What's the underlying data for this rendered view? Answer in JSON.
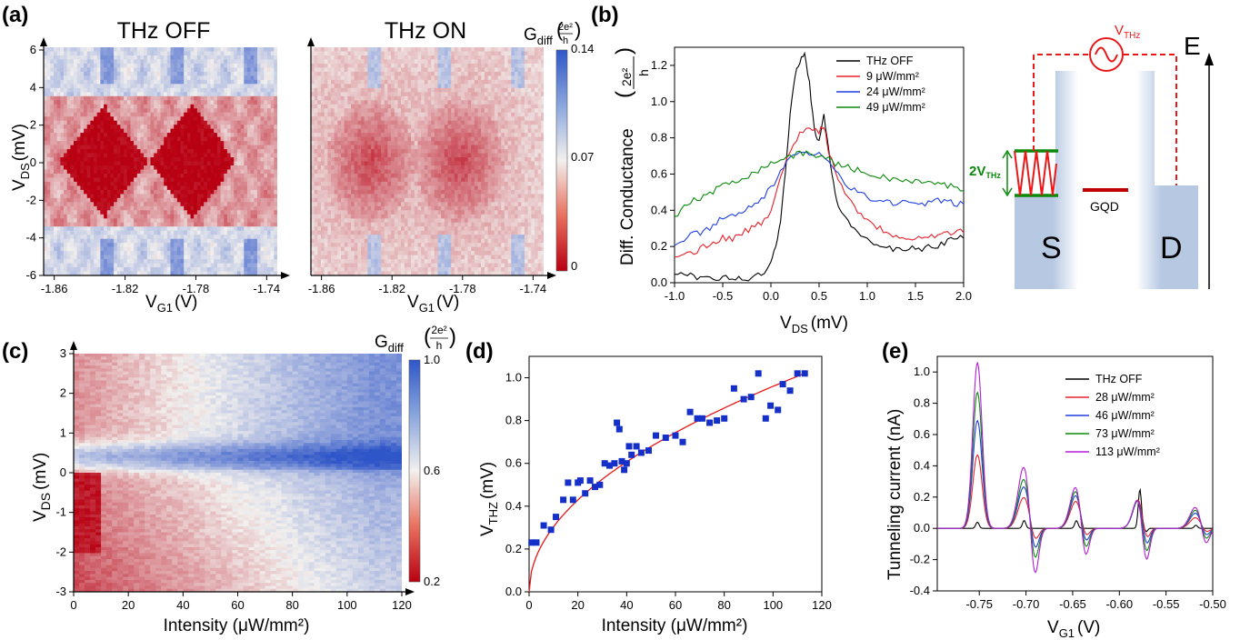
{
  "panel_labels": [
    "(a)",
    "(b)",
    "(c)",
    "(d)",
    "(e)"
  ],
  "colors": {
    "thz_off": "#000000",
    "red": "#e8202a",
    "blue": "#1f3fe0",
    "green": "#0a8a0a",
    "purple": "#b41ed8",
    "marker": "#1530c8",
    "fit": "#e81818",
    "map_low": "#b80012",
    "map_mid": "#f2f0ee",
    "map_high": "#2f56c8",
    "band": "#b7c8e3"
  },
  "chart_data": [
    {
      "id": "a",
      "type": "heatmap",
      "titles": [
        "THz OFF",
        "THz ON"
      ],
      "xlabel_main": "V",
      "xlabel_sub": "G1",
      "xlabel_unit": "(V)",
      "ylabel_main": "V",
      "ylabel_sub": "DS",
      "ylabel_unit": "(mV)",
      "xticks": [
        "-1.86",
        "-1.82",
        "-1.78",
        "-1.74"
      ],
      "xtick_values": [
        -1.86,
        -1.82,
        -1.78,
        -1.74
      ],
      "yticks": [
        "6",
        "4",
        "2",
        "0",
        "-2",
        "-4",
        "-6"
      ],
      "ytick_values": [
        6,
        4,
        2,
        0,
        -2,
        -4,
        -6
      ],
      "xlim": [
        -1.866,
        -1.734
      ],
      "ylim": [
        -6,
        6
      ],
      "colorbar": {
        "label_main": "G",
        "label_sub": "diff",
        "label_num": "2e²",
        "label_den": "h",
        "ticks": [
          "0.14",
          "0.07",
          "0"
        ],
        "range": [
          0,
          0.14
        ]
      },
      "diamond_centers_V": [
        -1.832,
        -1.782
      ],
      "diamond_height_mV": 3.0
    },
    {
      "id": "b",
      "type": "line",
      "xlabel_main": "V",
      "xlabel_sub": "DS",
      "xlabel_unit": "(mV)",
      "ylabel": "Diff. Conductance",
      "ylabel_num": "2e²",
      "ylabel_den": "h",
      "xticks": [
        "-1.0",
        "-0.5",
        "0.0",
        "0.5",
        "1.0",
        "1.5",
        "2.0"
      ],
      "xtick_values": [
        -1.0,
        -0.5,
        0.0,
        0.5,
        1.0,
        1.5,
        2.0
      ],
      "yticks": [
        "0.0",
        "0.2",
        "0.4",
        "0.6",
        "0.8",
        "1.0",
        "1.2"
      ],
      "ytick_values": [
        0,
        0.2,
        0.4,
        0.6,
        0.8,
        1.0,
        1.2
      ],
      "xlim": [
        -1.0,
        2.0
      ],
      "ylim": [
        0,
        1.3
      ],
      "legend_position": "top-right",
      "series": [
        {
          "name": "THz OFF",
          "color": "#000000",
          "x": [
            -1.0,
            -0.9,
            -0.8,
            -0.7,
            -0.6,
            -0.5,
            -0.4,
            -0.3,
            -0.2,
            -0.1,
            0.0,
            0.05,
            0.1,
            0.15,
            0.2,
            0.25,
            0.3,
            0.35,
            0.4,
            0.45,
            0.5,
            0.55,
            0.6,
            0.65,
            0.7,
            0.8,
            0.9,
            1.0,
            1.1,
            1.2,
            1.3,
            1.4,
            1.5,
            1.6,
            1.7,
            1.8,
            1.9,
            2.0
          ],
          "y": [
            0.04,
            0.06,
            0.03,
            0.02,
            0.02,
            0.03,
            0.02,
            0.02,
            0.03,
            0.04,
            0.1,
            0.2,
            0.35,
            0.6,
            0.95,
            1.15,
            1.22,
            1.28,
            1.1,
            0.85,
            0.78,
            0.93,
            0.72,
            0.55,
            0.42,
            0.33,
            0.28,
            0.24,
            0.21,
            0.19,
            0.18,
            0.18,
            0.19,
            0.19,
            0.2,
            0.22,
            0.24,
            0.26
          ]
        },
        {
          "name": "9 μW/mm²",
          "color": "#e8202a",
          "x": [
            -1.0,
            -0.9,
            -0.8,
            -0.7,
            -0.6,
            -0.5,
            -0.4,
            -0.3,
            -0.2,
            -0.1,
            0.0,
            0.1,
            0.2,
            0.3,
            0.4,
            0.5,
            0.55,
            0.6,
            0.7,
            0.8,
            0.9,
            1.0,
            1.1,
            1.2,
            1.3,
            1.4,
            1.5,
            1.6,
            1.7,
            1.8,
            1.9,
            2.0
          ],
          "y": [
            0.15,
            0.17,
            0.16,
            0.2,
            0.22,
            0.25,
            0.24,
            0.28,
            0.3,
            0.33,
            0.38,
            0.6,
            0.72,
            0.82,
            0.86,
            0.84,
            0.87,
            0.72,
            0.58,
            0.47,
            0.4,
            0.35,
            0.31,
            0.28,
            0.26,
            0.25,
            0.25,
            0.26,
            0.26,
            0.27,
            0.28,
            0.29
          ]
        },
        {
          "name": "24 μW/mm²",
          "color": "#1f3fe0",
          "x": [
            -1.0,
            -0.9,
            -0.8,
            -0.7,
            -0.6,
            -0.5,
            -0.4,
            -0.3,
            -0.2,
            -0.1,
            0.0,
            0.1,
            0.2,
            0.3,
            0.4,
            0.5,
            0.6,
            0.7,
            0.8,
            0.9,
            1.0,
            1.1,
            1.2,
            1.3,
            1.4,
            1.5,
            1.6,
            1.7,
            1.8,
            1.9,
            2.0
          ],
          "y": [
            0.2,
            0.24,
            0.27,
            0.28,
            0.32,
            0.36,
            0.37,
            0.4,
            0.42,
            0.46,
            0.52,
            0.62,
            0.68,
            0.72,
            0.7,
            0.72,
            0.68,
            0.6,
            0.54,
            0.5,
            0.47,
            0.45,
            0.45,
            0.44,
            0.44,
            0.43,
            0.44,
            0.45,
            0.45,
            0.44,
            0.43
          ]
        },
        {
          "name": "49 μW/mm²",
          "color": "#0a8a0a",
          "x": [
            -1.0,
            -0.9,
            -0.8,
            -0.7,
            -0.6,
            -0.5,
            -0.4,
            -0.3,
            -0.2,
            -0.1,
            0.0,
            0.1,
            0.2,
            0.3,
            0.4,
            0.5,
            0.6,
            0.7,
            0.8,
            0.9,
            1.0,
            1.1,
            1.2,
            1.3,
            1.4,
            1.5,
            1.6,
            1.7,
            1.8,
            1.9,
            2.0
          ],
          "y": [
            0.36,
            0.42,
            0.46,
            0.47,
            0.5,
            0.55,
            0.56,
            0.58,
            0.6,
            0.63,
            0.66,
            0.68,
            0.7,
            0.71,
            0.72,
            0.7,
            0.68,
            0.65,
            0.64,
            0.62,
            0.6,
            0.59,
            0.58,
            0.57,
            0.56,
            0.56,
            0.55,
            0.55,
            0.54,
            0.53,
            0.52
          ]
        }
      ]
    },
    {
      "id": "b-schematic",
      "type": "diagram",
      "labels": {
        "source": "S",
        "drain": "D",
        "dot": "GQD",
        "energy": "E",
        "vthz_main": "V",
        "vthz_sub": "THz",
        "two_v_main": "2V",
        "two_v_sub": "THz"
      }
    },
    {
      "id": "c",
      "type": "heatmap",
      "xlabel": "Intensity (μW/mm²)",
      "ylabel_main": "V",
      "ylabel_sub": "DS",
      "ylabel_unit": "(mV)",
      "xticks": [
        "0",
        "20",
        "40",
        "60",
        "80",
        "100",
        "120"
      ],
      "xtick_values": [
        0,
        20,
        40,
        60,
        80,
        100,
        120
      ],
      "yticks": [
        "3",
        "2",
        "1",
        "0",
        "-1",
        "-2",
        "-3"
      ],
      "ytick_values": [
        3,
        2,
        1,
        0,
        -1,
        -2,
        -3
      ],
      "xlim": [
        0,
        120
      ],
      "ylim": [
        -3,
        3
      ],
      "colorbar": {
        "label_main": "G",
        "label_sub": "diff",
        "label_num": "2e²",
        "label_den": "h",
        "ticks": [
          "1.0",
          "0.6",
          "0.2"
        ],
        "range": [
          0.2,
          1.0
        ]
      }
    },
    {
      "id": "d",
      "type": "scatter",
      "xlabel": "Intensity (μW/mm²)",
      "ylabel_main": "V",
      "ylabel_sub": "THZ",
      "ylabel_unit": "(mV)",
      "xticks": [
        "0",
        "20",
        "40",
        "60",
        "80",
        "100",
        "120"
      ],
      "xtick_values": [
        0,
        20,
        40,
        60,
        80,
        100,
        120
      ],
      "yticks": [
        "0.0",
        "0.2",
        "0.4",
        "0.6",
        "0.8",
        "1.0"
      ],
      "ytick_values": [
        0,
        0.2,
        0.4,
        0.6,
        0.8,
        1.0
      ],
      "xlim": [
        0,
        120
      ],
      "ylim": [
        0,
        1.1
      ],
      "points": {
        "x": [
          1,
          3,
          6,
          9,
          11,
          14,
          16,
          18,
          20,
          21,
          23,
          25,
          27,
          29,
          31,
          33,
          35,
          36,
          37,
          38,
          39,
          40,
          41,
          42,
          44,
          46,
          49,
          52,
          56,
          60,
          63,
          66,
          69,
          71,
          74,
          77,
          80,
          84,
          88,
          91,
          94,
          97,
          99,
          102,
          104,
          107,
          110,
          113
        ],
        "y": [
          0.23,
          0.23,
          0.31,
          0.29,
          0.35,
          0.43,
          0.51,
          0.43,
          0.51,
          0.52,
          0.46,
          0.52,
          0.49,
          0.5,
          0.6,
          0.59,
          0.6,
          0.79,
          0.76,
          0.61,
          0.57,
          0.6,
          0.68,
          0.64,
          0.68,
          0.65,
          0.66,
          0.73,
          0.72,
          0.73,
          0.7,
          0.84,
          0.81,
          0.81,
          0.79,
          0.8,
          0.81,
          0.95,
          0.9,
          0.91,
          1.02,
          0.81,
          0.87,
          0.85,
          0.97,
          0.94,
          1.02,
          1.02
        ]
      },
      "fit": {
        "form": "a*sqrt(x)",
        "a": 0.096,
        "color": "#e81818"
      }
    },
    {
      "id": "e",
      "type": "line",
      "xlabel_main": "V",
      "xlabel_sub": "G1",
      "xlabel_unit": "(V)",
      "ylabel": "Tunneling current (nA)",
      "xticks": [
        "-0.75",
        "-0.70",
        "-0.65",
        "-0.60",
        "-0.55",
        "-0.50"
      ],
      "xtick_values": [
        -0.75,
        -0.7,
        -0.65,
        -0.6,
        -0.55,
        -0.5
      ],
      "yticks": [
        "-0.4",
        "-0.2",
        "0.0",
        "0.2",
        "0.4",
        "0.6",
        "0.8",
        "1.0"
      ],
      "ytick_values": [
        -0.4,
        -0.2,
        0,
        0.2,
        0.4,
        0.6,
        0.8,
        1.0
      ],
      "xlim": [
        -0.795,
        -0.5
      ],
      "ylim": [
        -0.4,
        1.1
      ],
      "legend_position": "top-right",
      "peak_centers_V": [
        -0.752,
        -0.702,
        -0.646,
        -0.578,
        -0.518
      ],
      "peak_sign_flip_V": [
        -0.691,
        -0.637,
        -0.572,
        -0.508
      ],
      "series": [
        {
          "name": "THz OFF",
          "color": "#000000",
          "amplitudes": [
            0.04,
            0.05,
            0.05,
            0.25,
            0.02
          ]
        },
        {
          "name": "28 μW/mm²",
          "color": "#e8202a",
          "amplitudes": [
            0.47,
            0.2,
            0.18,
            0.22,
            0.07
          ]
        },
        {
          "name": "46 μW/mm²",
          "color": "#1f3fe0",
          "amplitudes": [
            0.69,
            0.27,
            0.22,
            0.22,
            0.1
          ]
        },
        {
          "name": "73 μW/mm²",
          "color": "#0a8a0a",
          "amplitudes": [
            0.87,
            0.32,
            0.25,
            0.23,
            0.12
          ]
        },
        {
          "name": "113 μW/mm²",
          "color": "#b41ed8",
          "amplitudes": [
            1.06,
            0.4,
            0.28,
            0.24,
            0.14
          ]
        }
      ]
    }
  ]
}
